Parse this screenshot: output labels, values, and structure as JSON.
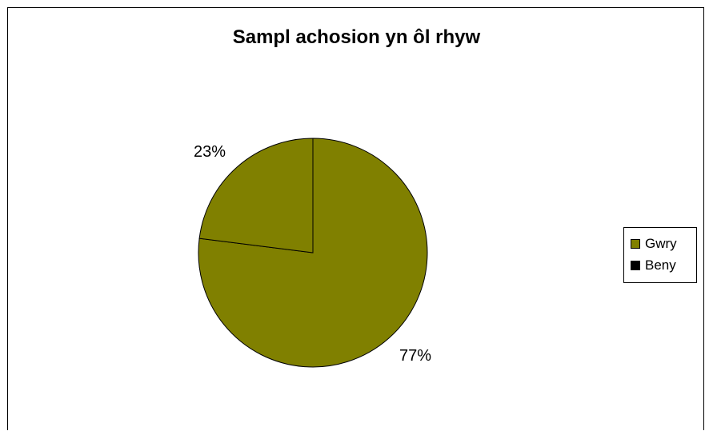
{
  "chart_data": {
    "type": "pie",
    "title": "Sampl achosion yn ôl rhyw",
    "slices": [
      {
        "name": "Gwry",
        "value": 77,
        "label": "77%",
        "color": "#808000"
      },
      {
        "name": "Beny",
        "value": 23,
        "label": "23%",
        "color": "#808000"
      }
    ],
    "legend": {
      "position": "right",
      "items": [
        {
          "name": "Gwry",
          "color": "#808000"
        },
        {
          "name": "Beny",
          "color": "#000000"
        }
      ]
    }
  }
}
